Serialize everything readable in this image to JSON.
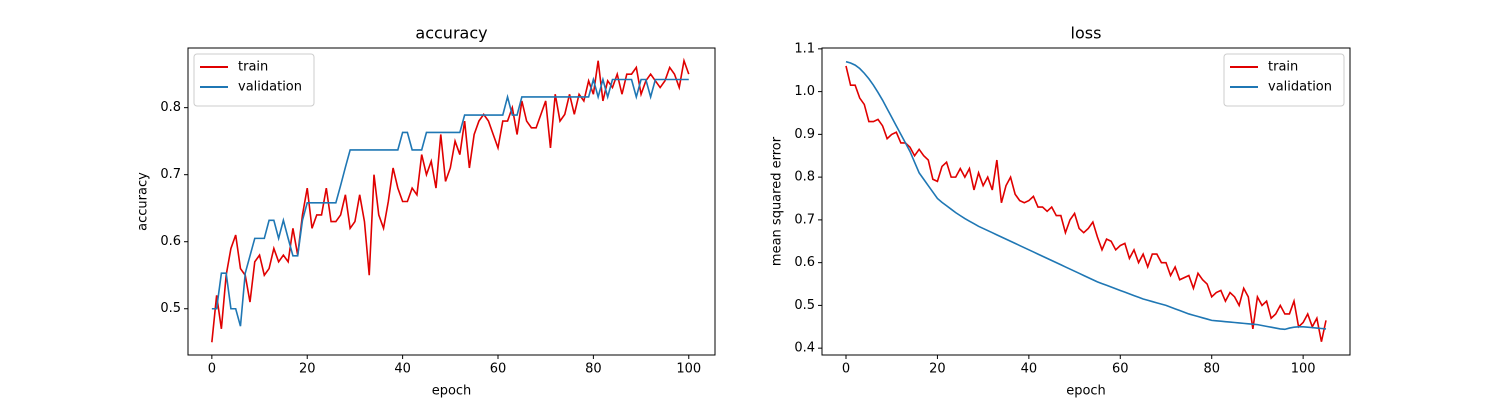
{
  "chart_data": [
    {
      "type": "line",
      "title": "accuracy",
      "xlabel": "epoch",
      "ylabel": "accuracy",
      "x": [
        0,
        1,
        2,
        3,
        4,
        5,
        6,
        7,
        8,
        9,
        10,
        11,
        12,
        13,
        14,
        15,
        16,
        17,
        18,
        19,
        20,
        21,
        22,
        23,
        24,
        25,
        26,
        27,
        28,
        29,
        30,
        31,
        32,
        33,
        34,
        35,
        36,
        37,
        38,
        39,
        40,
        41,
        42,
        43,
        44,
        45,
        46,
        47,
        48,
        49,
        50,
        51,
        52,
        53,
        54,
        55,
        56,
        57,
        58,
        59,
        60,
        61,
        62,
        63,
        64,
        65,
        66,
        67,
        68,
        69,
        70,
        71,
        72,
        73,
        74,
        75,
        76,
        77,
        78,
        79,
        80,
        81,
        82,
        83,
        84,
        85,
        86,
        87,
        88,
        89,
        90,
        91,
        92,
        93,
        94,
        95,
        96,
        97,
        98,
        99,
        100
      ],
      "series": [
        {
          "name": "train",
          "color": "#e00000",
          "values": [
            0.45,
            0.52,
            0.47,
            0.55,
            0.59,
            0.61,
            0.56,
            0.55,
            0.51,
            0.57,
            0.58,
            0.55,
            0.56,
            0.59,
            0.57,
            0.58,
            0.57,
            0.62,
            0.58,
            0.64,
            0.68,
            0.62,
            0.64,
            0.64,
            0.68,
            0.63,
            0.63,
            0.64,
            0.67,
            0.62,
            0.63,
            0.67,
            0.63,
            0.55,
            0.7,
            0.64,
            0.62,
            0.66,
            0.71,
            0.68,
            0.66,
            0.66,
            0.68,
            0.67,
            0.73,
            0.7,
            0.72,
            0.68,
            0.76,
            0.69,
            0.71,
            0.75,
            0.73,
            0.78,
            0.71,
            0.76,
            0.78,
            0.79,
            0.78,
            0.76,
            0.74,
            0.78,
            0.78,
            0.8,
            0.76,
            0.81,
            0.78,
            0.77,
            0.77,
            0.79,
            0.81,
            0.74,
            0.82,
            0.78,
            0.79,
            0.82,
            0.79,
            0.82,
            0.81,
            0.84,
            0.82,
            0.87,
            0.81,
            0.84,
            0.83,
            0.85,
            0.82,
            0.85,
            0.85,
            0.86,
            0.82,
            0.84,
            0.85,
            0.84,
            0.83,
            0.84,
            0.86,
            0.85,
            0.83,
            0.87,
            0.85
          ]
        },
        {
          "name": "validation",
          "color": "#1f77b4",
          "values": [
            0.5,
            0.5,
            0.553,
            0.553,
            0.5,
            0.5,
            0.474,
            0.553,
            0.579,
            0.605,
            0.605,
            0.605,
            0.632,
            0.632,
            0.605,
            0.632,
            0.605,
            0.579,
            0.579,
            0.632,
            0.658,
            0.658,
            0.658,
            0.658,
            0.658,
            0.658,
            0.658,
            0.684,
            0.711,
            0.737,
            0.737,
            0.737,
            0.737,
            0.737,
            0.737,
            0.737,
            0.737,
            0.737,
            0.737,
            0.737,
            0.763,
            0.763,
            0.737,
            0.737,
            0.737,
            0.763,
            0.763,
            0.763,
            0.763,
            0.763,
            0.763,
            0.763,
            0.763,
            0.789,
            0.789,
            0.789,
            0.789,
            0.789,
            0.789,
            0.789,
            0.789,
            0.789,
            0.816,
            0.789,
            0.789,
            0.816,
            0.816,
            0.816,
            0.816,
            0.816,
            0.816,
            0.816,
            0.816,
            0.816,
            0.816,
            0.816,
            0.816,
            0.816,
            0.816,
            0.816,
            0.842,
            0.816,
            0.842,
            0.816,
            0.842,
            0.842,
            0.842,
            0.842,
            0.842,
            0.816,
            0.842,
            0.842,
            0.816,
            0.842,
            0.842,
            0.842,
            0.842,
            0.842,
            0.842,
            0.842,
            0.842
          ]
        }
      ],
      "xlim": [
        -5,
        105.5
      ],
      "xticks": [
        0,
        20,
        40,
        60,
        80,
        100
      ],
      "ylim": [
        0.431,
        0.889
      ],
      "yticks": [
        0.5,
        0.6,
        0.7,
        0.8
      ],
      "legend": "upper left"
    },
    {
      "type": "line",
      "title": "loss",
      "xlabel": "epoch",
      "ylabel": "mean squared error",
      "x": [
        0,
        1,
        2,
        3,
        4,
        5,
        6,
        7,
        8,
        9,
        10,
        11,
        12,
        13,
        14,
        15,
        16,
        17,
        18,
        19,
        20,
        21,
        22,
        23,
        24,
        25,
        26,
        27,
        28,
        29,
        30,
        31,
        32,
        33,
        34,
        35,
        36,
        37,
        38,
        39,
        40,
        41,
        42,
        43,
        44,
        45,
        46,
        47,
        48,
        49,
        50,
        51,
        52,
        53,
        54,
        55,
        56,
        57,
        58,
        59,
        60,
        61,
        62,
        63,
        64,
        65,
        66,
        67,
        68,
        69,
        70,
        71,
        72,
        73,
        74,
        75,
        76,
        77,
        78,
        79,
        80,
        81,
        82,
        83,
        84,
        85,
        86,
        87,
        88,
        89,
        90,
        91,
        92,
        93,
        94,
        95,
        96,
        97,
        98,
        99,
        100,
        101,
        102,
        103,
        104,
        105
      ],
      "series": [
        {
          "name": "train",
          "color": "#e00000",
          "values": [
            1.06,
            1.015,
            1.015,
            0.985,
            0.97,
            0.93,
            0.93,
            0.935,
            0.92,
            0.89,
            0.9,
            0.905,
            0.88,
            0.88,
            0.87,
            0.85,
            0.865,
            0.85,
            0.84,
            0.795,
            0.79,
            0.825,
            0.835,
            0.8,
            0.8,
            0.82,
            0.8,
            0.82,
            0.77,
            0.81,
            0.78,
            0.8,
            0.77,
            0.84,
            0.74,
            0.78,
            0.8,
            0.76,
            0.745,
            0.74,
            0.745,
            0.755,
            0.73,
            0.73,
            0.72,
            0.73,
            0.71,
            0.71,
            0.67,
            0.7,
            0.715,
            0.68,
            0.67,
            0.68,
            0.695,
            0.66,
            0.63,
            0.655,
            0.65,
            0.63,
            0.64,
            0.645,
            0.61,
            0.63,
            0.6,
            0.62,
            0.59,
            0.62,
            0.62,
            0.6,
            0.6,
            0.57,
            0.59,
            0.56,
            0.565,
            0.57,
            0.54,
            0.575,
            0.56,
            0.55,
            0.52,
            0.53,
            0.535,
            0.51,
            0.53,
            0.52,
            0.5,
            0.54,
            0.52,
            0.445,
            0.52,
            0.5,
            0.51,
            0.47,
            0.48,
            0.5,
            0.48,
            0.48,
            0.51,
            0.45,
            0.46,
            0.48,
            0.45,
            0.47,
            0.415,
            0.465
          ]
        },
        {
          "name": "validation",
          "color": "#1f77b4",
          "values": [
            1.07,
            1.067,
            1.062,
            1.054,
            1.043,
            1.03,
            1.015,
            0.998,
            0.98,
            0.96,
            0.94,
            0.92,
            0.9,
            0.88,
            0.86,
            0.835,
            0.81,
            0.795,
            0.78,
            0.765,
            0.75,
            0.741,
            0.733,
            0.725,
            0.717,
            0.71,
            0.703,
            0.697,
            0.691,
            0.685,
            0.68,
            0.675,
            0.67,
            0.665,
            0.66,
            0.655,
            0.65,
            0.645,
            0.64,
            0.635,
            0.63,
            0.625,
            0.62,
            0.615,
            0.61,
            0.605,
            0.6,
            0.595,
            0.59,
            0.585,
            0.58,
            0.575,
            0.57,
            0.565,
            0.56,
            0.555,
            0.551,
            0.547,
            0.543,
            0.539,
            0.535,
            0.531,
            0.527,
            0.523,
            0.519,
            0.515,
            0.512,
            0.509,
            0.506,
            0.503,
            0.5,
            0.496,
            0.492,
            0.488,
            0.484,
            0.48,
            0.477,
            0.474,
            0.471,
            0.468,
            0.465,
            0.464,
            0.463,
            0.462,
            0.461,
            0.46,
            0.459,
            0.458,
            0.457,
            0.456,
            0.455,
            0.453,
            0.451,
            0.449,
            0.447,
            0.445,
            0.444,
            0.447,
            0.449,
            0.45,
            0.45,
            0.449,
            0.448,
            0.447,
            0.446,
            0.445
          ]
        }
      ],
      "xlim": [
        -5.25,
        110.25
      ],
      "xticks": [
        0,
        20,
        40,
        60,
        80,
        100
      ],
      "ylim": [
        0.384,
        1.102
      ],
      "yticks": [
        0.4,
        0.5,
        0.6,
        0.7,
        0.8,
        0.9,
        {
          "value": 1,
          "label": "1.0"
        },
        1.1
      ],
      "legend": "upper right"
    }
  ]
}
